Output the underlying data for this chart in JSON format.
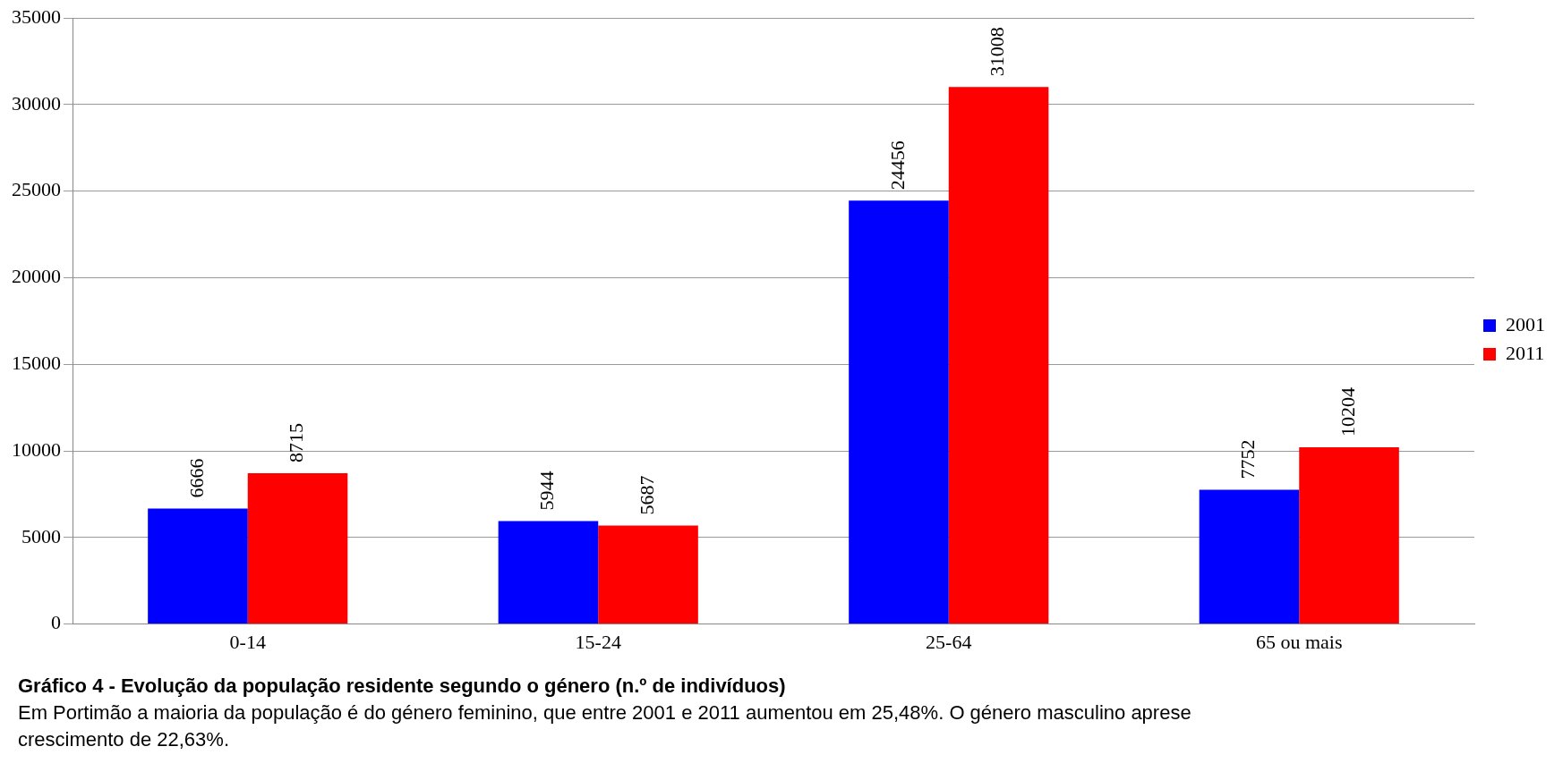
{
  "chart_data": {
    "type": "bar",
    "categories": [
      "0-14",
      "15-24",
      "25-64",
      "65 ou mais"
    ],
    "series": [
      {
        "name": "2001",
        "color": "#0000ff",
        "values": [
          6666,
          5944,
          24456,
          7752
        ]
      },
      {
        "name": "2011",
        "color": "#ff0000",
        "values": [
          8715,
          5687,
          31008,
          10204
        ]
      }
    ],
    "ylim": [
      0,
      35000
    ],
    "yticks": [
      0,
      5000,
      10000,
      15000,
      20000,
      25000,
      30000,
      35000
    ],
    "grid": "y",
    "legend": "right",
    "data_labels": true,
    "annotations": [
      "Gráfico 4 - Evolução da população residente segundo o género (n.º de indivíduos)",
      "Em Portimão a maioria da população é do género feminino, que entre 2001 e 2011 aumentou em 25,48%. O género masculino aprese",
      "crescimento de 22,63%."
    ]
  }
}
